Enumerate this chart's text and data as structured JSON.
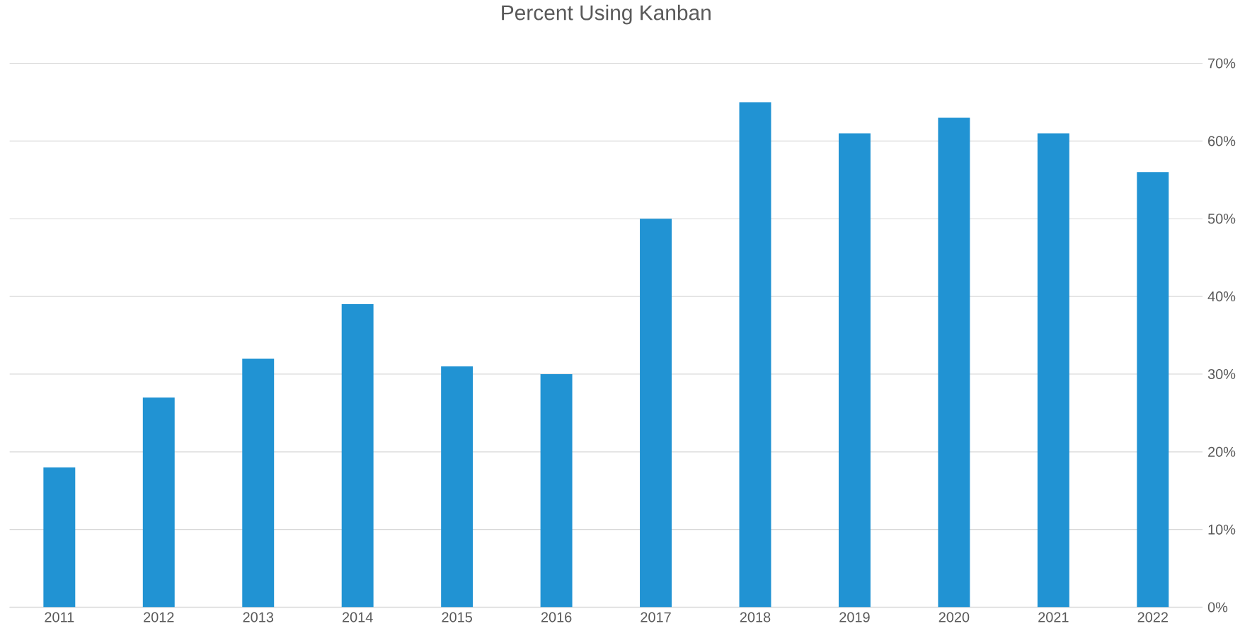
{
  "chart_data": {
    "type": "bar",
    "title": "Percent Using Kanban",
    "categories": [
      "2011",
      "2012",
      "2013",
      "2014",
      "2015",
      "2016",
      "2017",
      "2018",
      "2019",
      "2020",
      "2021",
      "2022"
    ],
    "values": [
      18,
      27,
      32,
      39,
      31,
      30,
      50,
      65,
      61,
      63,
      61,
      56
    ],
    "color": "#2193d3",
    "ylim": [
      0,
      70
    ],
    "yticks": [
      {
        "value": 0,
        "label": "0%"
      },
      {
        "value": 10,
        "label": "10%"
      },
      {
        "value": 20,
        "label": "20%"
      },
      {
        "value": 30,
        "label": "30%"
      },
      {
        "value": 40,
        "label": "40%"
      },
      {
        "value": 50,
        "label": "50%"
      },
      {
        "value": 60,
        "label": "60%"
      },
      {
        "value": 70,
        "label": "70%"
      }
    ],
    "grid": "y"
  }
}
